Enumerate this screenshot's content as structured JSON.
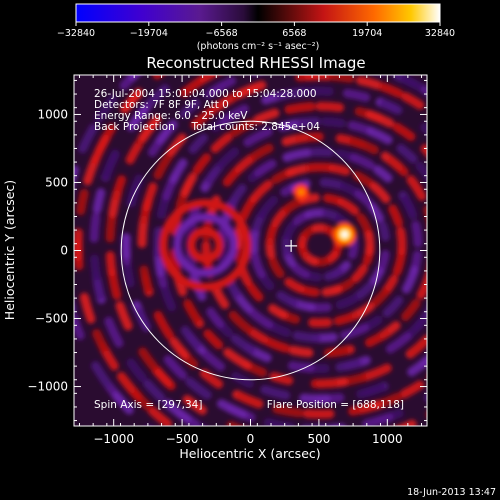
{
  "chart_data": {
    "type": "heatmap",
    "title": "Reconstructed RHESSI Image",
    "xlabel": "Heliocentric X (arcsec)",
    "ylabel": "Heliocentric Y (arcsec)",
    "xlim": [
      -1290,
      1290
    ],
    "ylim": [
      -1290,
      1290
    ],
    "x_ticks": [
      "−1000",
      "−500",
      "0",
      "500",
      "1000"
    ],
    "x_tick_values": [
      -1000,
      -500,
      0,
      500,
      1000
    ],
    "y_ticks": [
      "1000",
      "500",
      "0",
      "−500",
      "−1000"
    ],
    "y_tick_values": [
      1000,
      500,
      0,
      -500,
      -1000
    ],
    "colorbar": {
      "min": -32840,
      "max": 32840,
      "tick_labels": [
        "−32840",
        "−19704",
        "−6568",
        "6568",
        "19704",
        "32840"
      ],
      "tick_values": [
        -32840,
        -19704,
        -6568,
        6568,
        19704,
        32840
      ],
      "units": "(photons cm⁻² s⁻¹ asec⁻²)"
    },
    "info_lines": [
      "26-Jul-2004 15:01:04.000 to 15:04:28.000",
      "Detectors: 7F 8F 9F, Att 0",
      "Energy Range: 6.0 - 25.0 keV",
      "Back Projection     Total counts: 2.845e+04"
    ],
    "spin_axis_label": "Spin Axis = [297,34]",
    "flare_position_label": "Flare Position = [688,118]",
    "flare_position": [
      688,
      118
    ],
    "spin_axis": [
      297,
      34
    ],
    "solar_limb_radius": 945,
    "grid": false
  },
  "timestamp": "18-Jun-2013 13:47",
  "colors": {
    "background": "#000000",
    "foreground": "#ffffff",
    "colormap": [
      "#0000ff",
      "#3a00d8",
      "#6a00a0",
      "#3b1a55",
      "#000000",
      "#5a0a0a",
      "#d81818",
      "#ff6a00",
      "#ffd000",
      "#ffffff"
    ]
  }
}
